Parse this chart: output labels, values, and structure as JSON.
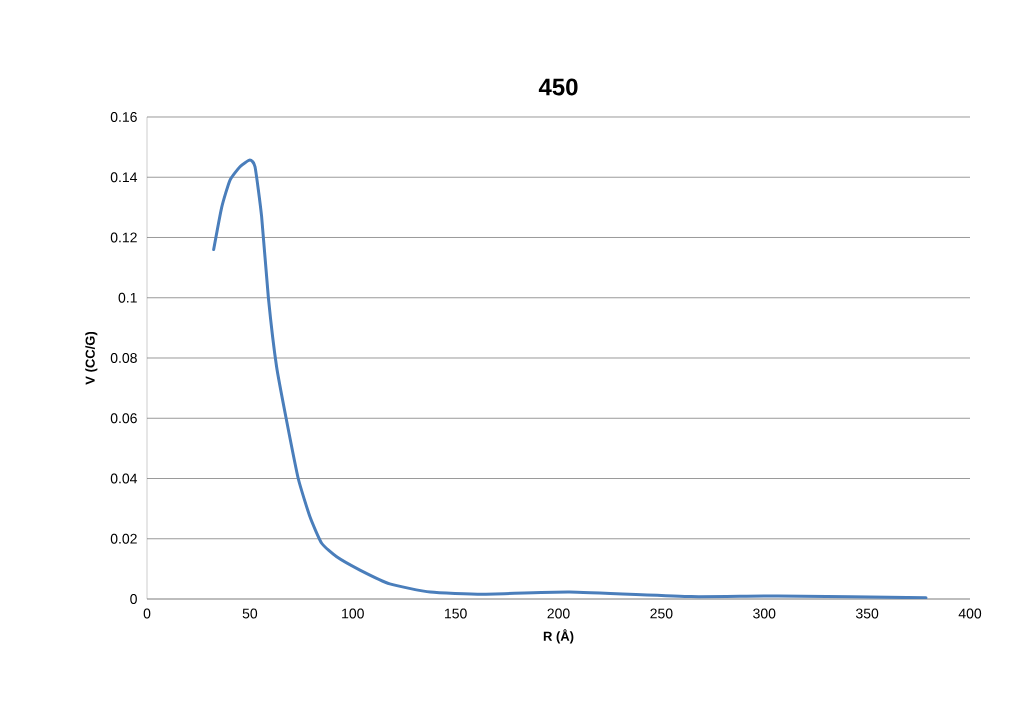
{
  "chart_data": {
    "type": "line",
    "title": "450",
    "xlabel": "R (Å)",
    "ylabel": "V (CC/G)",
    "xlim": [
      0,
      400
    ],
    "xticks": [
      0,
      50,
      100,
      150,
      200,
      250,
      300,
      350,
      400
    ],
    "ylim": [
      0,
      0.16
    ],
    "yticks": [
      0,
      0.02,
      0.04,
      0.06,
      0.08,
      0.1,
      0.12,
      0.14,
      0.16
    ],
    "grid": "y",
    "series": [
      {
        "color": "#4a7ebb",
        "x": [
          32.4,
          36.3,
          40.3,
          45.2,
          50,
          52.5,
          55.7,
          59,
          63,
          67.9,
          73.5,
          79.2,
          84.9,
          92.2,
          103.5,
          118,
          137.7,
          163.1,
          205.4,
          264.5,
          306.7,
          378.6
        ],
        "values": [
          0.116,
          0.13,
          0.139,
          0.1435,
          0.1457,
          0.1435,
          0.127,
          0.1,
          0.077,
          0.059,
          0.04,
          0.0273,
          0.0185,
          0.014,
          0.0096,
          0.005,
          0.0023,
          0.0016,
          0.0023,
          0.0008,
          0.001,
          0.0004
        ]
      }
    ]
  }
}
